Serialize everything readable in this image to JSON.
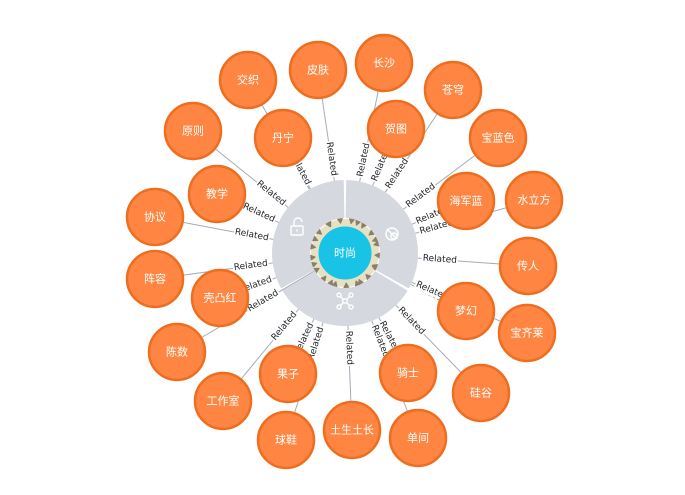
{
  "center": {
    "label": "时尚"
  },
  "colors": {
    "node_fill": "#ff8642",
    "node_stroke": "#ee6d1f",
    "center_fill": "#19c3e6",
    "ring": "#d5d8de",
    "edge": "#a5abb6"
  },
  "ring_icons": [
    "unlock-icon",
    "hide-icon",
    "expand-network-icon"
  ],
  "relation_label": "Related",
  "nodes": [
    {
      "id": "n1",
      "label": "交织"
    },
    {
      "id": "n2",
      "label": "皮肤"
    },
    {
      "id": "n3",
      "label": "长沙"
    },
    {
      "id": "n4",
      "label": "苍穹"
    },
    {
      "id": "n5",
      "label": "丹宁"
    },
    {
      "id": "n6",
      "label": "贺图"
    },
    {
      "id": "n7",
      "label": "原则"
    },
    {
      "id": "n8",
      "label": "宝蓝色"
    },
    {
      "id": "n9",
      "label": "教学"
    },
    {
      "id": "n10",
      "label": "海军蓝"
    },
    {
      "id": "n11",
      "label": "水立方"
    },
    {
      "id": "n12",
      "label": "协议"
    },
    {
      "id": "n13",
      "label": "传人"
    },
    {
      "id": "n14",
      "label": "阵容"
    },
    {
      "id": "n15",
      "label": "壳凸红"
    },
    {
      "id": "n16",
      "label": "梦幻"
    },
    {
      "id": "n17",
      "label": "宝齐莱"
    },
    {
      "id": "n18",
      "label": "陈数"
    },
    {
      "id": "n19",
      "label": "果子"
    },
    {
      "id": "n20",
      "label": "骑士"
    },
    {
      "id": "n21",
      "label": "工作室"
    },
    {
      "id": "n22",
      "label": "硅谷"
    },
    {
      "id": "n23",
      "label": "球鞋"
    },
    {
      "id": "n24",
      "label": "土生土长"
    },
    {
      "id": "n25",
      "label": "单间"
    }
  ]
}
